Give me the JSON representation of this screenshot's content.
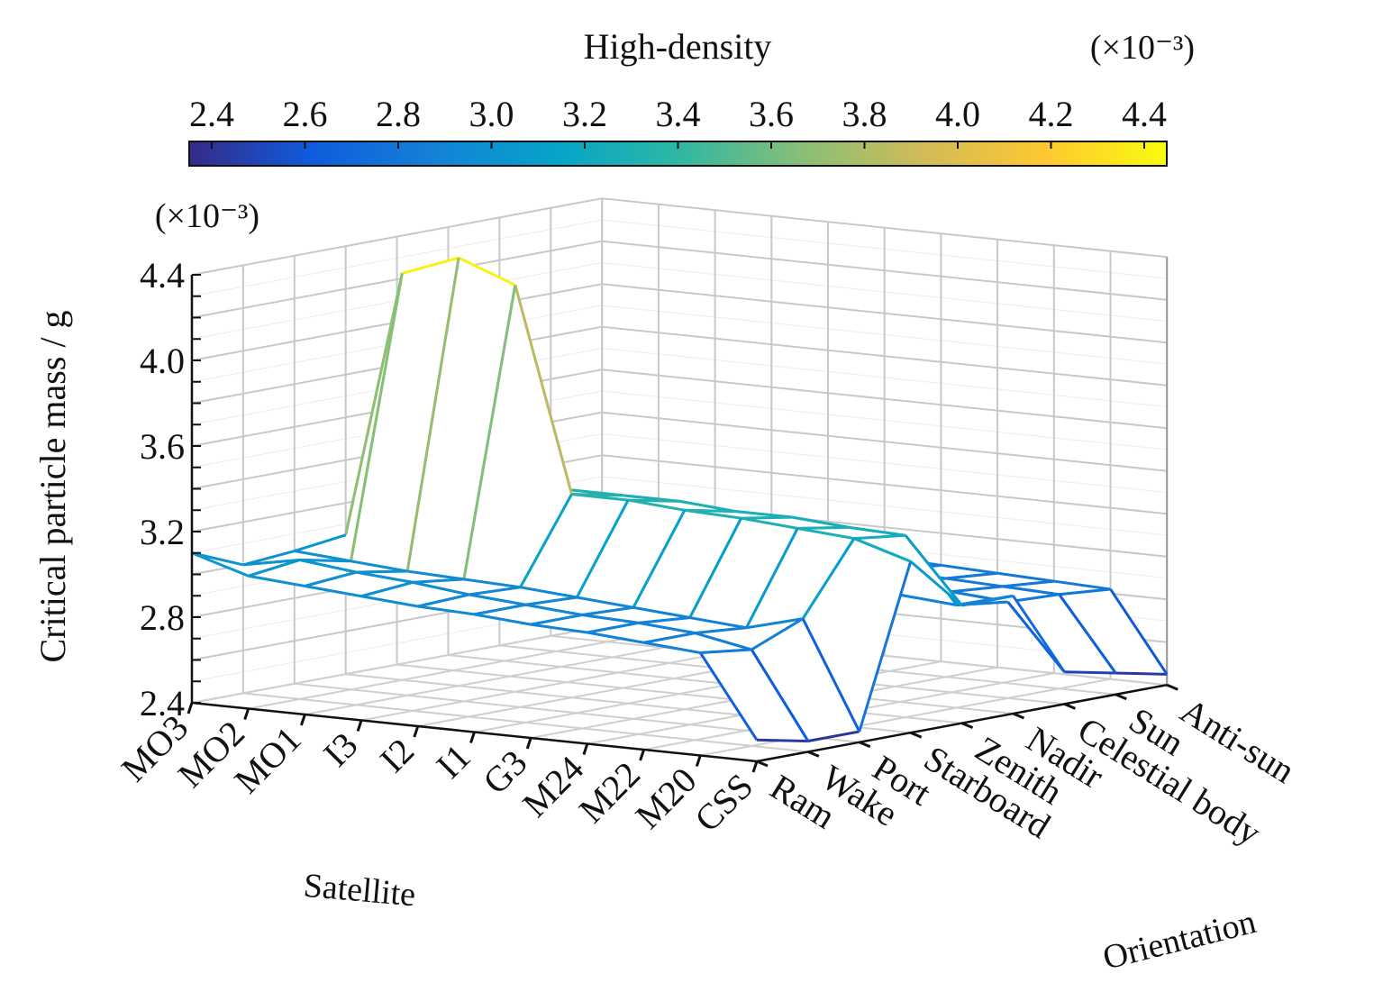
{
  "chart_data": {
    "type": "surface",
    "colorbar": {
      "title": "High-density",
      "multiplier": "(×10⁻³)",
      "ticks": [
        "2.4",
        "2.6",
        "2.8",
        "3.0",
        "3.2",
        "3.4",
        "3.6",
        "3.8",
        "4.0",
        "4.2",
        "4.4"
      ],
      "range": [
        2.4,
        4.4
      ],
      "colormap": [
        "#352a87",
        "#0f5cdd",
        "#1481d6",
        "#06a4ca",
        "#2eb7a4",
        "#87bf77",
        "#d1bb59",
        "#fec832",
        "#f9fb0e"
      ]
    },
    "zlabel": "Critical particle mass / g",
    "zmultiplier": "(×10⁻³)",
    "zticks": [
      "2.4",
      "2.8",
      "3.2",
      "3.6",
      "4.0",
      "4.4"
    ],
    "zlim": [
      2.4,
      4.4
    ],
    "xlabel": "Satellite",
    "x": [
      "MO3",
      "MO2",
      "MO1",
      "I3",
      "I2",
      "I1",
      "G3",
      "M24",
      "M22",
      "M20",
      "CSS"
    ],
    "ylabel": "Orientation",
    "y": [
      "Ram",
      "Wake",
      "Port",
      "Starboard",
      "Zenith",
      "Nadir",
      "Celestial body",
      "Sun",
      "Anti-sun"
    ],
    "grid": true,
    "z": [
      [
        3.1,
        3.02,
        3.0,
        2.98,
        2.96,
        2.95,
        2.93,
        2.92,
        2.9,
        2.88,
        2.5
      ],
      [
        3.0,
        3.05,
        3.02,
        3.0,
        2.97,
        2.95,
        2.93,
        2.92,
        2.9,
        2.85,
        2.45
      ],
      [
        3.02,
        3.0,
        2.98,
        2.97,
        2.96,
        2.94,
        2.92,
        2.9,
        2.88,
        2.95,
        2.45
      ],
      [
        3.05,
        4.3,
        4.4,
        4.3,
        3.35,
        3.35,
        3.33,
        3.32,
        3.3,
        3.28,
        3.2
      ],
      [
        3.0,
        3.3,
        3.32,
        3.3,
        3.3,
        3.3,
        3.28,
        3.28,
        3.26,
        3.25,
        2.95
      ],
      [
        2.95,
        2.98,
        2.97,
        2.96,
        2.95,
        2.94,
        2.93,
        2.92,
        2.9,
        2.88,
        2.95
      ],
      [
        2.92,
        2.93,
        2.92,
        2.91,
        2.9,
        2.9,
        2.89,
        2.88,
        2.87,
        2.85,
        2.55
      ],
      [
        2.9,
        2.9,
        2.9,
        2.89,
        2.88,
        2.88,
        2.87,
        2.86,
        2.85,
        2.84,
        2.5
      ],
      [
        2.88,
        2.88,
        2.88,
        2.87,
        2.86,
        2.86,
        2.85,
        2.84,
        2.83,
        2.82,
        2.45
      ]
    ]
  }
}
